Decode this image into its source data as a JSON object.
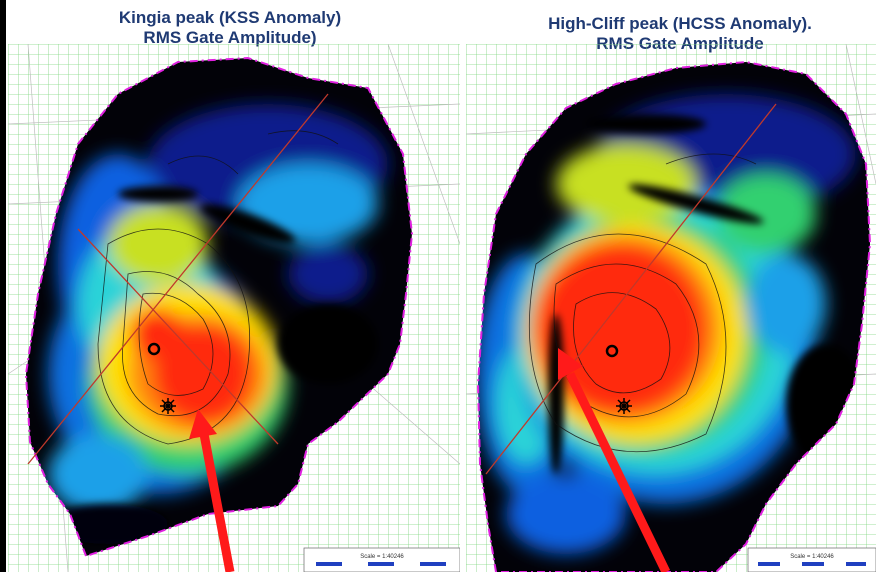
{
  "left_panel": {
    "title_line1": "Kingia peak (KSS Anomaly)",
    "title_line2": "RMS Gate Amplitude)",
    "scale_label": "Scale = 1:40246"
  },
  "right_panel": {
    "title_line1": "High-Cliff peak (HCSS Anomaly).",
    "title_line2": "RMS Gate Amplitude",
    "scale_label": "Scale = 1:40246"
  },
  "colors": {
    "title": "#1f3a73",
    "grid": "#7fd67f",
    "boundary": "#e020e0",
    "arrow": "#ff1a1a",
    "section_line": "#c0392b",
    "amplitude_high": "#ff2a10",
    "amplitude_mid": "#ffe000",
    "amplitude_low": "#0a1a8c"
  }
}
